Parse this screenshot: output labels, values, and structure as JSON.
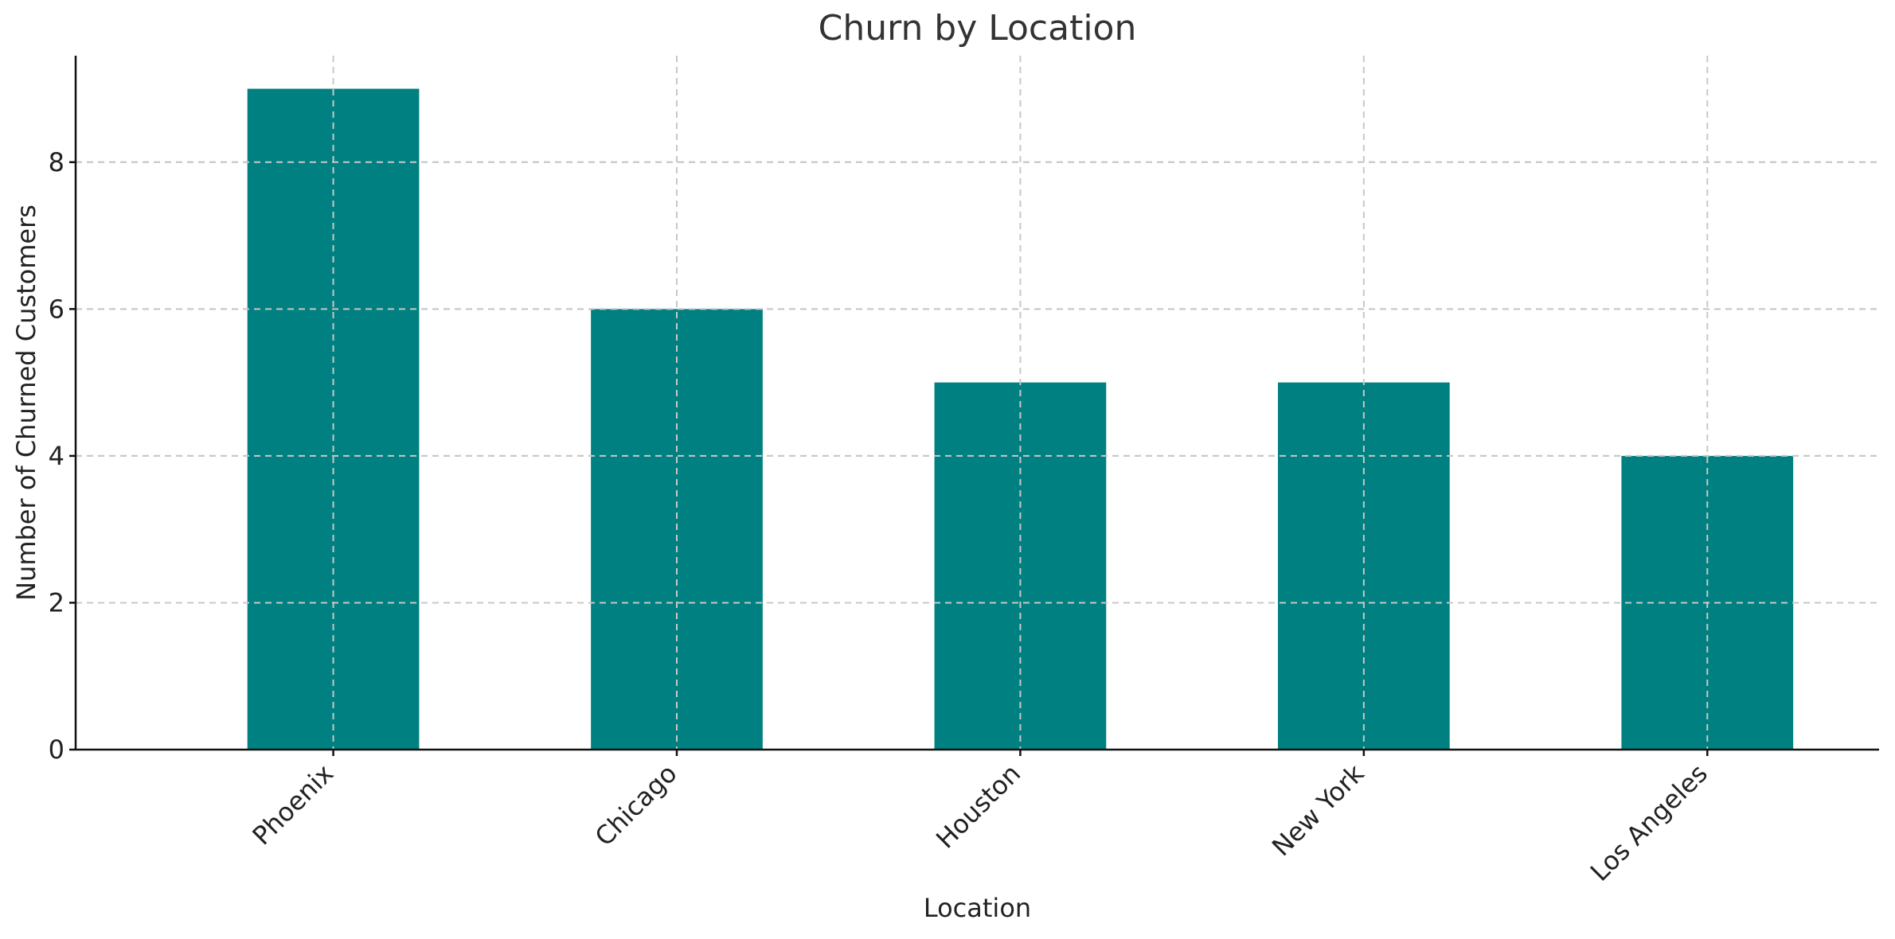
{
  "chart_data": {
    "type": "bar",
    "title": "Churn by Location",
    "xlabel": "Location",
    "ylabel": "Number of Churned Customers",
    "categories": [
      "Phoenix",
      "Chicago",
      "Houston",
      "New York",
      "Los Angeles"
    ],
    "values": [
      9,
      6,
      5,
      5,
      4
    ],
    "ylim": [
      0,
      9.45
    ],
    "yticks": [
      0,
      2,
      4,
      6,
      8
    ],
    "grid": true,
    "bar_color": "#008080",
    "xtick_rotation": 45
  }
}
